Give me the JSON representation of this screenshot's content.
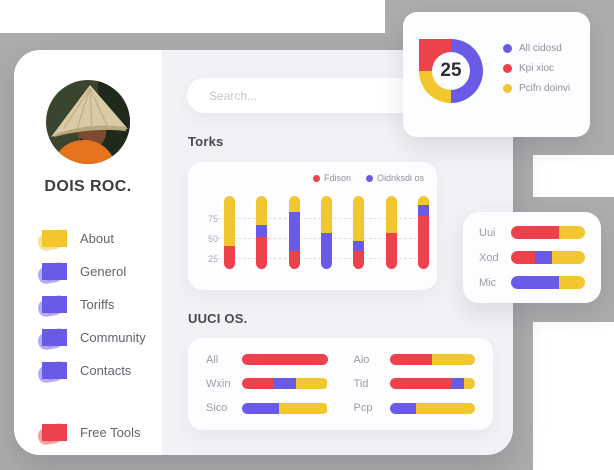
{
  "colors": {
    "red": "#ED414B",
    "purple": "#6A5AE8",
    "yellow": "#F1C62F"
  },
  "sidebar": {
    "name": "DOIS ROC.",
    "items": [
      {
        "label": "About",
        "color": "yellow"
      },
      {
        "label": "Generol",
        "color": "purple"
      },
      {
        "label": "Toriffs",
        "color": "purple"
      },
      {
        "label": "Community",
        "color": "purple"
      },
      {
        "label": "Contacts",
        "color": "purple"
      }
    ],
    "footer_item": {
      "label": "Free Tools",
      "color": "red"
    }
  },
  "search": {
    "placeholder": "Search..."
  },
  "donut_card": {
    "value": "25",
    "segments": [
      {
        "color": "purple",
        "pct": 50
      },
      {
        "color": "yellow",
        "pct": 25
      },
      {
        "color": "red",
        "pct": 25
      }
    ],
    "legend": [
      {
        "label": "All cidosd",
        "color": "purple"
      },
      {
        "label": "Kpi xioc",
        "color": "red"
      },
      {
        "label": "Pcifn doinvi",
        "color": "yellow"
      }
    ]
  },
  "torks": {
    "title": "Torks",
    "legend": [
      {
        "label": "Fdison",
        "color": "red"
      },
      {
        "label": "Oidnksdi os",
        "color": "purple"
      }
    ],
    "y_ticks": [
      "75",
      "50",
      "25"
    ],
    "bars": [
      [
        {
          "color": "red",
          "pct": 31
        },
        {
          "color": "yellow",
          "pct": 69
        }
      ],
      [
        {
          "color": "red",
          "pct": 44
        },
        {
          "color": "purple",
          "pct": 16
        },
        {
          "color": "yellow",
          "pct": 40
        }
      ],
      [
        {
          "color": "red",
          "pct": 25
        },
        {
          "color": "purple",
          "pct": 53
        },
        {
          "color": "yellow",
          "pct": 22
        }
      ],
      [
        {
          "color": "purple",
          "pct": 49
        },
        {
          "color": "yellow",
          "pct": 51
        }
      ],
      [
        {
          "color": "red",
          "pct": 25
        },
        {
          "color": "purple",
          "pct": 13
        },
        {
          "color": "yellow",
          "pct": 62
        }
      ],
      [
        {
          "color": "red",
          "pct": 49
        },
        {
          "color": "yellow",
          "pct": 51
        }
      ],
      [
        {
          "color": "red",
          "pct": 73
        },
        {
          "color": "purple",
          "pct": 15
        },
        {
          "color": "yellow",
          "pct": 12
        }
      ]
    ]
  },
  "side_card": {
    "rows": [
      {
        "label": "Uui",
        "segments": [
          {
            "color": "red",
            "pct": 65
          },
          {
            "color": "yellow",
            "pct": 35
          }
        ]
      },
      {
        "label": "Xod",
        "segments": [
          {
            "color": "red",
            "pct": 33
          },
          {
            "color": "purple",
            "pct": 23
          },
          {
            "color": "yellow",
            "pct": 44
          }
        ]
      },
      {
        "label": "Mic",
        "segments": [
          {
            "color": "purple",
            "pct": 65
          },
          {
            "color": "yellow",
            "pct": 35
          }
        ]
      }
    ]
  },
  "uuci": {
    "title": "UUCI OS.",
    "rows": [
      {
        "label": "All",
        "segments": [
          {
            "color": "red",
            "pct": 100
          }
        ]
      },
      {
        "label": "Wxin",
        "segments": [
          {
            "color": "red",
            "pct": 38
          },
          {
            "color": "purple",
            "pct": 25
          },
          {
            "color": "yellow",
            "pct": 37
          }
        ]
      },
      {
        "label": "Sico",
        "segments": [
          {
            "color": "purple",
            "pct": 43
          },
          {
            "color": "yellow",
            "pct": 57
          }
        ]
      },
      {
        "label": "Aio",
        "segments": [
          {
            "color": "red",
            "pct": 50
          },
          {
            "color": "yellow",
            "pct": 50
          }
        ]
      },
      {
        "label": "Tid",
        "segments": [
          {
            "color": "red",
            "pct": 73
          },
          {
            "color": "purple",
            "pct": 14
          },
          {
            "color": "yellow",
            "pct": 13
          }
        ]
      },
      {
        "label": "Pcp",
        "segments": [
          {
            "color": "purple",
            "pct": 31
          },
          {
            "color": "yellow",
            "pct": 69
          }
        ]
      }
    ]
  }
}
